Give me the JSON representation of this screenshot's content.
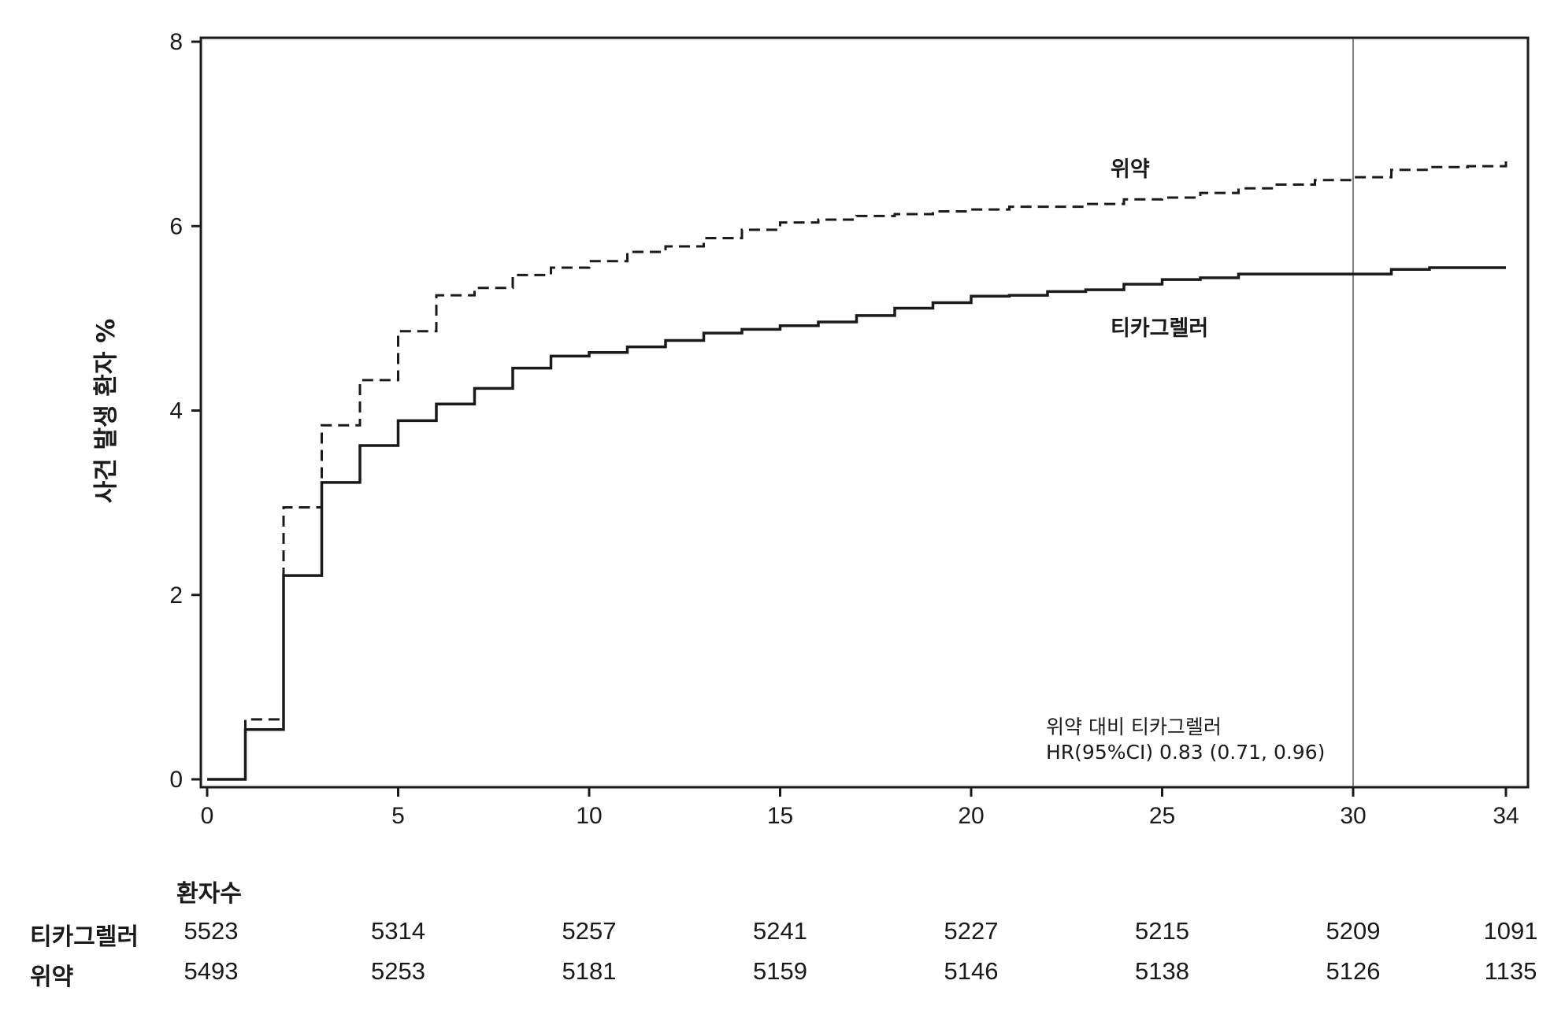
{
  "chart_data": {
    "type": "line",
    "step": true,
    "ylabel": "사건 발생 환자 %",
    "xlabel": "",
    "xlim": [
      0,
      34
    ],
    "ylim": [
      0,
      8
    ],
    "xticks": [
      0,
      5,
      10,
      15,
      20,
      25,
      30,
      34
    ],
    "yticks": [
      0,
      2,
      4,
      6,
      8
    ],
    "reference_line_x": 30,
    "series": [
      {
        "name": "위약",
        "style": "dashed",
        "x": [
          0,
          1,
          2,
          3,
          4,
          5,
          6,
          7,
          8,
          9,
          10,
          11,
          12,
          13,
          14,
          15,
          16,
          17,
          18,
          19,
          20,
          21,
          22,
          23,
          24,
          25,
          26,
          27,
          28,
          29,
          30,
          31,
          32,
          33,
          34
        ],
        "y": [
          0,
          0.65,
          2.95,
          3.84,
          4.33,
          4.86,
          5.25,
          5.33,
          5.47,
          5.55,
          5.62,
          5.72,
          5.78,
          5.87,
          5.96,
          6.04,
          6.07,
          6.11,
          6.13,
          6.16,
          6.18,
          6.21,
          6.21,
          6.24,
          6.29,
          6.31,
          6.36,
          6.41,
          6.45,
          6.5,
          6.53,
          6.61,
          6.64,
          6.65,
          6.72
        ]
      },
      {
        "name": "티카그렐러",
        "style": "solid",
        "x": [
          0,
          1,
          2,
          3,
          4,
          5,
          6,
          7,
          8,
          9,
          10,
          11,
          12,
          13,
          14,
          15,
          16,
          17,
          18,
          19,
          20,
          21,
          22,
          23,
          24,
          25,
          26,
          27,
          28,
          29,
          30,
          31,
          32,
          33,
          34
        ],
        "y": [
          0,
          0.54,
          2.21,
          3.22,
          3.62,
          3.89,
          4.07,
          4.24,
          4.46,
          4.59,
          4.63,
          4.69,
          4.76,
          4.84,
          4.88,
          4.92,
          4.96,
          5.03,
          5.11,
          5.17,
          5.24,
          5.25,
          5.29,
          5.31,
          5.37,
          5.42,
          5.44,
          5.48,
          5.48,
          5.48,
          5.48,
          5.53,
          5.55,
          5.55,
          5.55
        ]
      }
    ],
    "annotation": {
      "line1": "위약 대비 티카그렐러",
      "line2": "HR(95%CI) 0.83 (0.71, 0.96)"
    },
    "risk_table": {
      "title": "환자수",
      "x": [
        0,
        5,
        10,
        15,
        20,
        25,
        30,
        34
      ],
      "rows": [
        {
          "label": "티카그렐러",
          "values": [
            "5523",
            "5314",
            "5257",
            "5241",
            "5227",
            "5215",
            "5209",
            "1091"
          ]
        },
        {
          "label": "위약",
          "values": [
            "5493",
            "5253",
            "5181",
            "5159",
            "5146",
            "5138",
            "5126",
            "1135"
          ]
        }
      ]
    }
  }
}
